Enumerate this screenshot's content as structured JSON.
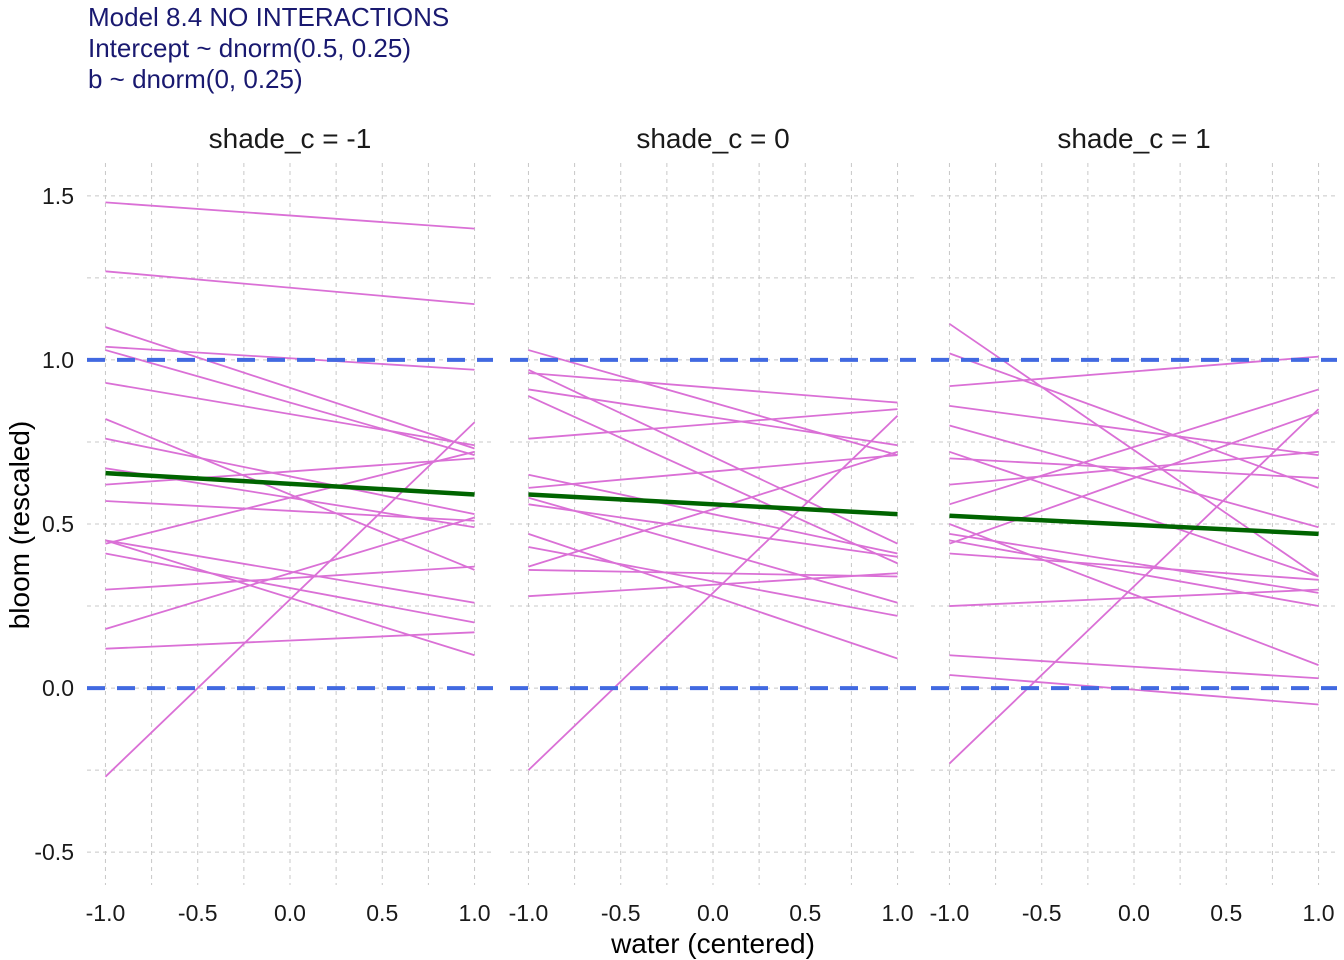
{
  "chart_data": {
    "type": "line",
    "title_lines": [
      "Model 8.4 NO INTERACTIONS",
      "Intercept ~ dnorm(0.5, 0.25)",
      "b ~ dnorm(0, 0.25)"
    ],
    "xlabel": "water (centered)",
    "ylabel": "bloom (rescaled)",
    "xlim": [
      -1.1,
      1.1
    ],
    "ylim": [
      -0.6,
      1.6
    ],
    "xticks": [
      -1.0,
      -0.5,
      0.0,
      0.5,
      1.0
    ],
    "xtick_labels": [
      "-1.0",
      "-0.5",
      "0.0",
      "0.5",
      "1.0"
    ],
    "yticks": [
      -0.5,
      0.0,
      0.5,
      1.0,
      1.5
    ],
    "ytick_labels": [
      "-0.5",
      "0.0",
      "0.5",
      "1.0",
      "1.5"
    ],
    "reference_lines": [
      0.0,
      1.0
    ],
    "grid": true,
    "colors": {
      "prior_lines": "#da70d6",
      "mean_line": "#006400",
      "reference": "#4169e1",
      "title": "#191970",
      "grid": "#c8c8c8"
    },
    "panels": [
      {
        "label": "shade_c = -1",
        "mean_line": [
          [
            -1,
            0.655
          ],
          [
            1,
            0.59
          ]
        ],
        "lines": [
          [
            [
              -1,
              1.48
            ],
            [
              1,
              1.4
            ]
          ],
          [
            [
              -1,
              1.27
            ],
            [
              1,
              1.17
            ]
          ],
          [
            [
              -1,
              1.1
            ],
            [
              1,
              0.73
            ]
          ],
          [
            [
              -1,
              1.04
            ],
            [
              1,
              0.97
            ]
          ],
          [
            [
              -1,
              1.03
            ],
            [
              1,
              0.71
            ]
          ],
          [
            [
              -1,
              0.93
            ],
            [
              1,
              0.74
            ]
          ],
          [
            [
              -1,
              0.82
            ],
            [
              1,
              0.36
            ]
          ],
          [
            [
              -1,
              0.76
            ],
            [
              1,
              0.53
            ]
          ],
          [
            [
              -1,
              0.67
            ],
            [
              1,
              0.49
            ]
          ],
          [
            [
              -1,
              0.62
            ],
            [
              1,
              0.7
            ]
          ],
          [
            [
              -1,
              0.57
            ],
            [
              1,
              0.51
            ]
          ],
          [
            [
              -1,
              0.45
            ],
            [
              1,
              0.26
            ]
          ],
          [
            [
              -1,
              0.44
            ],
            [
              1,
              0.72
            ]
          ],
          [
            [
              -1,
              0.45
            ],
            [
              1,
              0.1
            ]
          ],
          [
            [
              -1,
              0.41
            ],
            [
              1,
              0.2
            ]
          ],
          [
            [
              -1,
              0.3
            ],
            [
              1,
              0.37
            ]
          ],
          [
            [
              -1,
              0.18
            ],
            [
              1,
              0.52
            ]
          ],
          [
            [
              -1,
              0.12
            ],
            [
              1,
              0.17
            ]
          ],
          [
            [
              -1,
              -0.27
            ],
            [
              1,
              0.81
            ]
          ]
        ]
      },
      {
        "label": "shade_c = 0",
        "mean_line": [
          [
            -1,
            0.59
          ],
          [
            1,
            0.53
          ]
        ],
        "lines": [
          [
            [
              -1,
              1.03
            ],
            [
              1,
              0.71
            ]
          ],
          [
            [
              -1,
              0.97
            ],
            [
              1,
              0.44
            ]
          ],
          [
            [
              -1,
              0.96
            ],
            [
              1,
              0.87
            ]
          ],
          [
            [
              -1,
              0.91
            ],
            [
              1,
              0.74
            ]
          ],
          [
            [
              -1,
              0.89
            ],
            [
              1,
              0.38
            ]
          ],
          [
            [
              -1,
              0.76
            ],
            [
              1,
              0.85
            ]
          ],
          [
            [
              -1,
              0.65
            ],
            [
              1,
              0.41
            ]
          ],
          [
            [
              -1,
              0.61
            ],
            [
              1,
              0.71
            ]
          ],
          [
            [
              -1,
              0.58
            ],
            [
              1,
              0.26
            ]
          ],
          [
            [
              -1,
              0.56
            ],
            [
              1,
              0.4
            ]
          ],
          [
            [
              -1,
              0.47
            ],
            [
              1,
              0.09
            ]
          ],
          [
            [
              -1,
              0.43
            ],
            [
              1,
              0.22
            ]
          ],
          [
            [
              -1,
              0.37
            ],
            [
              1,
              0.72
            ]
          ],
          [
            [
              -1,
              0.36
            ],
            [
              1,
              0.34
            ]
          ],
          [
            [
              -1,
              0.28
            ],
            [
              1,
              0.35
            ]
          ],
          [
            [
              -1,
              -0.25
            ],
            [
              1,
              0.83
            ]
          ]
        ]
      },
      {
        "label": "shade_c = 1",
        "mean_line": [
          [
            -1,
            0.525
          ],
          [
            1,
            0.47
          ]
        ],
        "lines": [
          [
            [
              -1,
              1.11
            ],
            [
              1,
              0.34
            ]
          ],
          [
            [
              -1,
              1.02
            ],
            [
              1,
              0.61
            ]
          ],
          [
            [
              -1,
              0.92
            ],
            [
              1,
              1.01
            ]
          ],
          [
            [
              -1,
              0.86
            ],
            [
              1,
              0.71
            ]
          ],
          [
            [
              -1,
              0.8
            ],
            [
              1,
              0.49
            ]
          ],
          [
            [
              -1,
              0.72
            ],
            [
              1,
              0.34
            ]
          ],
          [
            [
              -1,
              0.7
            ],
            [
              1,
              0.64
            ]
          ],
          [
            [
              -1,
              0.62
            ],
            [
              1,
              0.72
            ]
          ],
          [
            [
              -1,
              0.56
            ],
            [
              1,
              0.91
            ]
          ],
          [
            [
              -1,
              0.5
            ],
            [
              1,
              0.07
            ]
          ],
          [
            [
              -1,
              0.47
            ],
            [
              1,
              0.29
            ]
          ],
          [
            [
              -1,
              0.45
            ],
            [
              1,
              0.25
            ]
          ],
          [
            [
              -1,
              0.44
            ],
            [
              1,
              0.84
            ]
          ],
          [
            [
              -1,
              0.41
            ],
            [
              1,
              0.33
            ]
          ],
          [
            [
              -1,
              0.25
            ],
            [
              1,
              0.3
            ]
          ],
          [
            [
              -1,
              0.1
            ],
            [
              1,
              0.03
            ]
          ],
          [
            [
              -1,
              0.04
            ],
            [
              1,
              -0.05
            ]
          ],
          [
            [
              -1,
              -0.23
            ],
            [
              1,
              0.85
            ]
          ]
        ]
      }
    ]
  }
}
